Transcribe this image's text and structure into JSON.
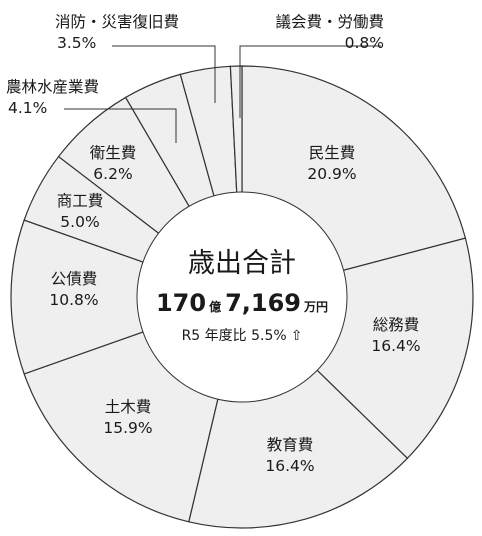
{
  "chart_data": {
    "type": "pie",
    "style": "donut",
    "slice_fill": "#efefef",
    "stroke": "#333333",
    "slices": [
      {
        "name": "民生費",
        "value": 20.9,
        "label": "20.9%"
      },
      {
        "name": "総務費",
        "value": 16.4,
        "label": "16.4%"
      },
      {
        "name": "教育費",
        "value": 16.4,
        "label": "16.4%"
      },
      {
        "name": "土木費",
        "value": 15.9,
        "label": "15.9%"
      },
      {
        "name": "公債費",
        "value": 10.8,
        "label": "10.8%"
      },
      {
        "name": "商工費",
        "value": 5.0,
        "label": "5.0%"
      },
      {
        "name": "衛生費",
        "value": 6.2,
        "label": "6.2%"
      },
      {
        "name": "農林水産業費",
        "value": 4.1,
        "label": "4.1%"
      },
      {
        "name": "消防・災害復旧費",
        "value": 3.5,
        "label": "3.5%"
      },
      {
        "name": "議会費・労働費",
        "value": 0.8,
        "label": "0.8%"
      }
    ],
    "center": {
      "title": "歳出合計",
      "amount_oku": "170",
      "unit_oku": "億",
      "amount_man": "7,169",
      "unit_man": "万円",
      "sub": "R5 年度比 5.5%",
      "arrow": "⇧"
    }
  }
}
